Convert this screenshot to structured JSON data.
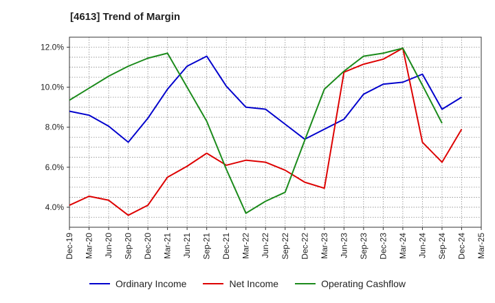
{
  "chart_data": {
    "type": "line",
    "title": "[4613]  Trend of Margin",
    "xlabel": "",
    "ylabel": "",
    "categories": [
      "Dec-19",
      "Mar-20",
      "Jun-20",
      "Sep-20",
      "Dec-20",
      "Mar-21",
      "Jun-21",
      "Sep-21",
      "Dec-21",
      "Mar-22",
      "Jun-22",
      "Sep-22",
      "Dec-22",
      "Mar-23",
      "Jun-23",
      "Sep-23",
      "Dec-23",
      "Mar-24",
      "Jun-24",
      "Sep-24",
      "Dec-24",
      "Mar-25"
    ],
    "ylim": [
      3.0,
      12.5
    ],
    "yticks": [
      4.0,
      6.0,
      8.0,
      10.0,
      12.0
    ],
    "ytick_labels": [
      "4.0%",
      "6.0%",
      "8.0%",
      "10.0%",
      "12.0%"
    ],
    "grid": true,
    "legend_position": "bottom",
    "series": [
      {
        "name": "Ordinary Income",
        "color": "#0000cc",
        "values": [
          8.8,
          8.6,
          8.05,
          7.25,
          8.45,
          9.9,
          11.05,
          11.55,
          10.05,
          9.0,
          8.9,
          8.15,
          7.4,
          7.9,
          8.4,
          9.65,
          10.15,
          10.25,
          10.65,
          8.9,
          9.5,
          null
        ]
      },
      {
        "name": "Net Income",
        "color": "#dd0000",
        "values": [
          4.1,
          4.55,
          4.35,
          3.6,
          4.1,
          5.5,
          6.05,
          6.7,
          6.1,
          6.35,
          6.25,
          5.85,
          5.25,
          4.95,
          10.75,
          11.15,
          11.4,
          11.95,
          7.25,
          6.25,
          7.9,
          null
        ]
      },
      {
        "name": "Operating Cashflow",
        "color": "#1a8a1a",
        "values": [
          9.35,
          9.95,
          10.55,
          11.05,
          11.45,
          11.7,
          10.0,
          8.3,
          5.9,
          3.7,
          4.3,
          4.75,
          7.35,
          9.9,
          10.8,
          11.55,
          11.7,
          11.95,
          10.1,
          8.2,
          null,
          null
        ]
      }
    ]
  }
}
